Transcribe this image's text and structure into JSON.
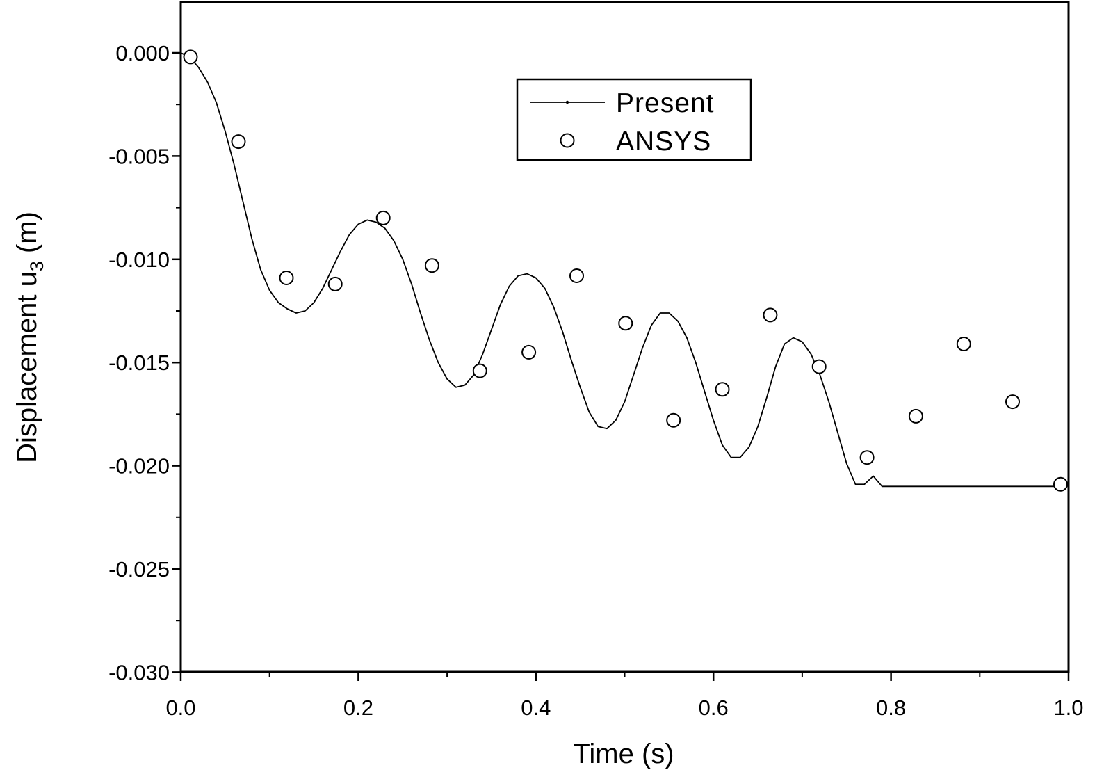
{
  "chart_data": {
    "type": "line",
    "title": "",
    "xlabel": "Time (s)",
    "ylabel": {
      "main": "Displacement u",
      "subscript": "3",
      "unit": " (m)"
    },
    "xlim": [
      0.0,
      1.0
    ],
    "ylim": [
      -0.03,
      0.002
    ],
    "x_ticks": [
      {
        "value": 0.0,
        "label": "0.0"
      },
      {
        "value": 0.2,
        "label": "0.2"
      },
      {
        "value": 0.4,
        "label": "0.4"
      },
      {
        "value": 0.6,
        "label": "0.6"
      },
      {
        "value": 0.8,
        "label": "0.8"
      },
      {
        "value": 1.0,
        "label": "1.0"
      }
    ],
    "x_minor_ticks": [
      0.1,
      0.3,
      0.5,
      0.7,
      0.9
    ],
    "y_ticks": [
      {
        "value": 0.0,
        "label": "0.000"
      },
      {
        "value": -0.005,
        "label": "-0.005"
      },
      {
        "value": -0.01,
        "label": "-0.010"
      },
      {
        "value": -0.015,
        "label": "-0.015"
      },
      {
        "value": -0.02,
        "label": "-0.020"
      },
      {
        "value": -0.025,
        "label": "-0.025"
      },
      {
        "value": -0.03,
        "label": "-0.030"
      }
    ],
    "y_minor_ticks": [
      -0.0025,
      -0.0075,
      -0.0125,
      -0.0175,
      -0.0225,
      -0.0275
    ],
    "grid": false,
    "legend_position": "top-center",
    "series": [
      {
        "name": "Present",
        "style": "line",
        "color": "#000000",
        "x": [
          0.0,
          0.01,
          0.02,
          0.03,
          0.04,
          0.05,
          0.06,
          0.07,
          0.08,
          0.09,
          0.1,
          0.11,
          0.12,
          0.13,
          0.14,
          0.15,
          0.16,
          0.17,
          0.18,
          0.19,
          0.2,
          0.21,
          0.22,
          0.23,
          0.24,
          0.25,
          0.26,
          0.27,
          0.28,
          0.29,
          0.3,
          0.31,
          0.32,
          0.33,
          0.34,
          0.35,
          0.36,
          0.37,
          0.38,
          0.39,
          0.4,
          0.41,
          0.42,
          0.43,
          0.44,
          0.45,
          0.46,
          0.47,
          0.48,
          0.49,
          0.5,
          0.51,
          0.52,
          0.53,
          0.54,
          0.55,
          0.56,
          0.57,
          0.58,
          0.59,
          0.6,
          0.61,
          0.62,
          0.63,
          0.64,
          0.65,
          0.66,
          0.67,
          0.68,
          0.69,
          0.7,
          0.71,
          0.72,
          0.73,
          0.74,
          0.75,
          0.76,
          0.77,
          0.78,
          0.79,
          0.8,
          0.81,
          0.82,
          0.83,
          0.84,
          0.85,
          0.86,
          0.87,
          0.88,
          0.89,
          0.9,
          0.91,
          0.92,
          0.93,
          0.94,
          0.95,
          0.96,
          0.97,
          0.98,
          0.99
        ],
        "y": [
          0.0,
          -0.0002,
          -0.0007,
          -0.0014,
          -0.0024,
          -0.0038,
          -0.0054,
          -0.0072,
          -0.009,
          -0.0105,
          -0.0115,
          -0.0121,
          -0.0124,
          -0.0126,
          -0.0125,
          -0.0121,
          -0.0114,
          -0.0105,
          -0.0096,
          -0.0088,
          -0.0083,
          -0.0081,
          -0.0082,
          -0.0085,
          -0.0091,
          -0.01,
          -0.0112,
          -0.0126,
          -0.0139,
          -0.015,
          -0.0158,
          -0.0162,
          -0.0161,
          -0.0156,
          -0.0146,
          -0.0134,
          -0.0122,
          -0.0113,
          -0.0108,
          -0.0107,
          -0.0109,
          -0.0114,
          -0.0123,
          -0.0135,
          -0.0149,
          -0.0162,
          -0.0174,
          -0.0181,
          -0.0182,
          -0.0178,
          -0.0169,
          -0.0156,
          -0.0143,
          -0.0132,
          -0.0126,
          -0.0126,
          -0.013,
          -0.0138,
          -0.015,
          -0.0164,
          -0.0178,
          -0.019,
          -0.0196,
          -0.0196,
          -0.0191,
          -0.0181,
          -0.0167,
          -0.0152,
          -0.0141,
          -0.0138,
          -0.014,
          -0.0146,
          -0.0156,
          -0.0169,
          -0.0184,
          -0.0199,
          -0.0209,
          -0.0209,
          -0.0205,
          -0.021,
          -0.021,
          -0.021,
          -0.021,
          -0.021,
          -0.021,
          -0.021,
          -0.021,
          -0.021,
          -0.021,
          -0.021,
          -0.021,
          -0.021,
          -0.021,
          -0.021,
          -0.021,
          -0.021,
          -0.021,
          -0.021,
          -0.021,
          -0.021
        ]
      },
      {
        "name": "ANSYS",
        "style": "markers",
        "marker": "open-circle",
        "color": "#000000",
        "x": [
          0.011,
          0.065,
          0.119,
          0.174,
          0.228,
          0.283,
          0.337,
          0.392,
          0.446,
          0.501,
          0.555,
          0.61,
          0.664,
          0.719,
          0.773,
          0.828,
          0.882,
          0.937,
          0.991
        ],
        "y": [
          -0.0002,
          -0.0043,
          -0.0109,
          -0.0112,
          -0.008,
          -0.0103,
          -0.0154,
          -0.0145,
          -0.0108,
          -0.0131,
          -0.0178,
          -0.0163,
          -0.0127,
          -0.0152,
          -0.0196,
          -0.0176,
          -0.0141,
          -0.0169,
          -0.0209
        ]
      }
    ]
  }
}
